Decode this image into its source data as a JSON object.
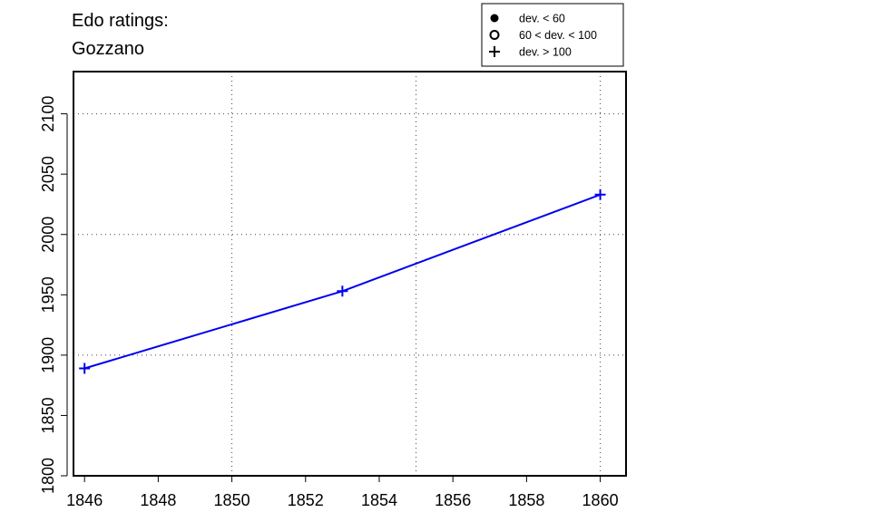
{
  "chart_data": {
    "type": "line",
    "title_line1": "Edo ratings:",
    "title_line2": "Gozzano",
    "xlabel": "",
    "ylabel": "",
    "xlim": [
      1845.7,
      1860.7
    ],
    "ylim": [
      1800,
      2135
    ],
    "x_ticks": [
      1846,
      1848,
      1850,
      1852,
      1854,
      1856,
      1858,
      1860
    ],
    "y_ticks": [
      1800,
      1850,
      1900,
      1950,
      2000,
      2050,
      2100
    ],
    "x_grid": [
      1850,
      1855,
      1860
    ],
    "y_grid": [
      1900,
      2000,
      2100
    ],
    "grid": true,
    "legend": {
      "placement": "top-right",
      "entries": [
        {
          "symbol": "filled-circle",
          "label": "dev. < 60"
        },
        {
          "symbol": "open-circle",
          "label": "60 < dev. < 100"
        },
        {
          "symbol": "plus",
          "label": "dev. > 100"
        }
      ]
    },
    "series": [
      {
        "color": "#0000ee",
        "x": [
          1846,
          1853,
          1860
        ],
        "y": [
          1889,
          1953,
          2033
        ],
        "markers": [
          "plus",
          "plus",
          "plus"
        ]
      }
    ]
  }
}
